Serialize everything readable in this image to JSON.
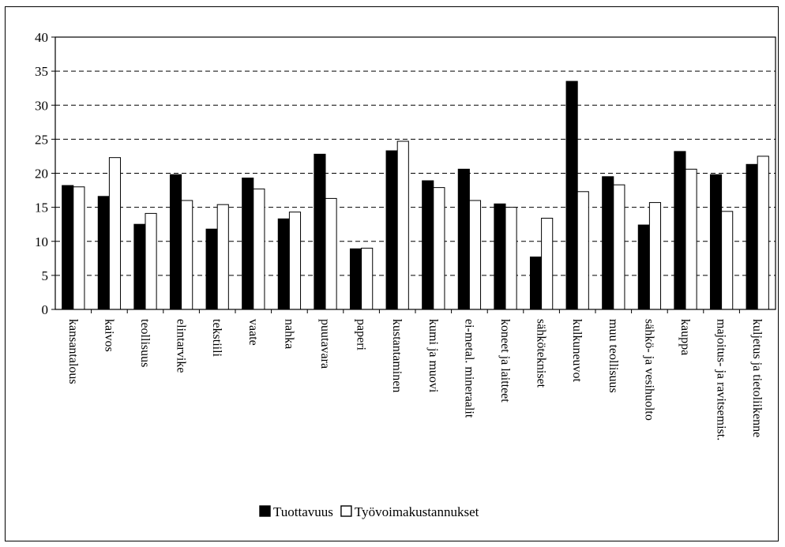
{
  "chart_data": {
    "type": "bar",
    "title": "",
    "xlabel": "",
    "ylabel": "",
    "ylim": [
      0,
      40
    ],
    "yticks": [
      0,
      5,
      10,
      15,
      20,
      25,
      30,
      35,
      40
    ],
    "grid": "horizontal-dashed",
    "legend_position": "bottom-center",
    "categories": [
      "kansantalous",
      "kaivos",
      "teollisuus",
      "elintarvike",
      "tekstiili",
      "vaate",
      "nahka",
      "puutavara",
      "paperi",
      "kustantaminen",
      "kumi ja muovi",
      "ei-metal. mineraalit",
      "koneet ja laitteet",
      "sähkötekniset",
      "kulkuneuvot",
      "muu teollisuus",
      "sähkö- ja vesihuolto",
      "kauppa",
      "majoitus- ja ravitsemist.",
      "kuljetus ja tietoliikenne"
    ],
    "series": [
      {
        "name": "Tuottavuus",
        "color": "#000000",
        "values": [
          18.2,
          16.6,
          12.5,
          19.8,
          11.8,
          19.3,
          13.3,
          22.8,
          8.9,
          23.3,
          18.9,
          20.6,
          15.5,
          7.7,
          33.5,
          19.5,
          12.4,
          23.2,
          19.8,
          21.3
        ]
      },
      {
        "name": "Työvoimakustannukset",
        "color": "#ffffff",
        "values": [
          18.0,
          22.3,
          14.1,
          16.0,
          15.4,
          17.7,
          14.3,
          16.3,
          9.0,
          24.7,
          17.9,
          16.0,
          15.0,
          13.4,
          17.3,
          18.3,
          15.7,
          20.6,
          14.4,
          22.5
        ]
      }
    ]
  }
}
